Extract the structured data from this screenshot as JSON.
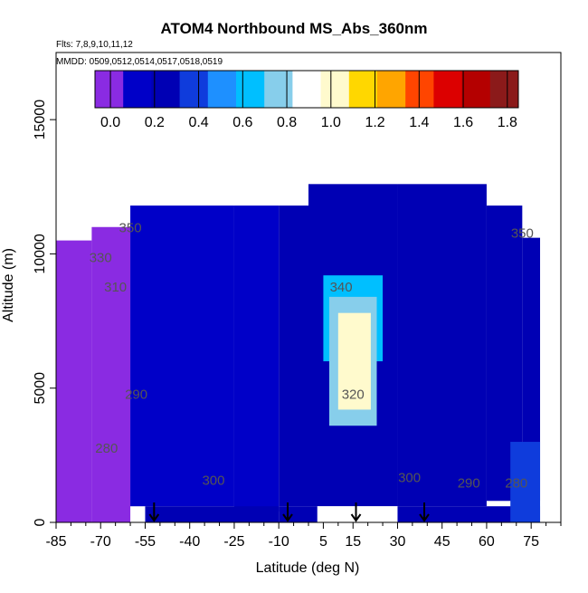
{
  "chart_data": {
    "type": "heatmap",
    "title": "ATOM4 Northbound MS_Abs_360nm",
    "annotations": [
      "Flts: 7,8,9,10,11,12",
      "MMDD: 0509,0512,0514,0517,0518,0519"
    ],
    "xlabel": "Latitude (deg N)",
    "ylabel": "Altitude (m)",
    "xlim": [
      -85,
      85
    ],
    "ylim": [
      0,
      17500
    ],
    "x_ticks": [
      -85,
      -70,
      -55,
      -40,
      -25,
      -10,
      5,
      15,
      30,
      45,
      60,
      75
    ],
    "x_tick_labels": [
      "-85",
      "-70",
      "-55",
      "-40",
      "-25",
      "-10",
      "5",
      "15",
      "30",
      "45",
      "60",
      "75"
    ],
    "y_ticks": [
      0,
      5000,
      10000,
      15000
    ],
    "y_tick_labels": [
      "0",
      "5000",
      "10000",
      "15000"
    ],
    "colorbar": {
      "ticks": [
        0.0,
        0.2,
        0.4,
        0.6,
        0.8,
        1.0,
        1.2,
        1.4,
        1.6,
        1.8
      ],
      "tick_labels": [
        "0.0",
        "0.2",
        "0.4",
        "0.6",
        "0.8",
        "1.0",
        "1.2",
        "1.4",
        "1.6",
        "1.8"
      ],
      "range": [
        -0.07,
        1.85
      ],
      "colors": [
        "#8a2be2",
        "#0000c8",
        "#0000b4",
        "#0f3cdc",
        "#1e90ff",
        "#00bfff",
        "#87ceeb",
        "#ffffff",
        "#fffacd",
        "#ffd700",
        "#ffa500",
        "#ff4500",
        "#dc0000",
        "#b40000",
        "#8b1a1a"
      ]
    },
    "contour_labels": [
      {
        "text": "350",
        "x": -60,
        "y": 10800
      },
      {
        "text": "330",
        "x": -70,
        "y": 9700
      },
      {
        "text": "310",
        "x": -65,
        "y": 8600
      },
      {
        "text": "340",
        "x": 11,
        "y": 8600
      },
      {
        "text": "350",
        "x": 72,
        "y": 10600
      },
      {
        "text": "290",
        "x": -58,
        "y": 4600
      },
      {
        "text": "280",
        "x": -68,
        "y": 2600
      },
      {
        "text": "300",
        "x": -32,
        "y": 1400
      },
      {
        "text": "320",
        "x": 15,
        "y": 4600
      },
      {
        "text": "300",
        "x": 34,
        "y": 1500
      },
      {
        "text": "290",
        "x": 54,
        "y": 1300
      },
      {
        "text": "280",
        "x": 70,
        "y": 1300
      }
    ],
    "arrows_latitude": [
      -52,
      -7,
      16,
      39
    ],
    "cross_section_regions": [
      {
        "x": [
          -85,
          -73
        ],
        "y": [
          0,
          10500
        ],
        "value": 0.05
      },
      {
        "x": [
          -73,
          -60
        ],
        "y": [
          0,
          11000
        ],
        "value": 0.05
      },
      {
        "x": [
          -60,
          -25
        ],
        "y": [
          600,
          11800
        ],
        "value": 0.1
      },
      {
        "x": [
          -25,
          -10
        ],
        "y": [
          400,
          11800
        ],
        "value": 0.15
      },
      {
        "x": [
          -10,
          0
        ],
        "y": [
          600,
          11800
        ],
        "value": 0.2
      },
      {
        "x": [
          0,
          30
        ],
        "y": [
          600,
          12600
        ],
        "value": 0.2
      },
      {
        "x": [
          30,
          60
        ],
        "y": [
          600,
          12600
        ],
        "value": 0.2
      },
      {
        "x": [
          60,
          72
        ],
        "y": [
          800,
          11800
        ],
        "value": 0.2
      },
      {
        "x": [
          72,
          78
        ],
        "y": [
          800,
          10600
        ],
        "value": 0.2
      },
      {
        "x": [
          -55,
          -10
        ],
        "y": [
          0,
          600
        ],
        "value": 0.2
      },
      {
        "x": [
          -10,
          3
        ],
        "y": [
          0,
          600
        ],
        "value": 0.25
      },
      {
        "x": [
          3,
          30
        ],
        "y": [
          0,
          600
        ],
        "value": 0.85
      },
      {
        "x": [
          30,
          78
        ],
        "y": [
          0,
          600
        ],
        "value": 0.3
      },
      {
        "x": [
          68,
          78
        ],
        "y": [
          0,
          3000
        ],
        "value": 0.35
      },
      {
        "x": [
          5,
          25
        ],
        "y": [
          6000,
          9200
        ],
        "value": 0.6
      },
      {
        "x": [
          7,
          23
        ],
        "y": [
          3600,
          8400
        ],
        "value": 0.8
      },
      {
        "x": [
          10,
          21
        ],
        "y": [
          4200,
          7800
        ],
        "value": 1.0
      }
    ]
  }
}
